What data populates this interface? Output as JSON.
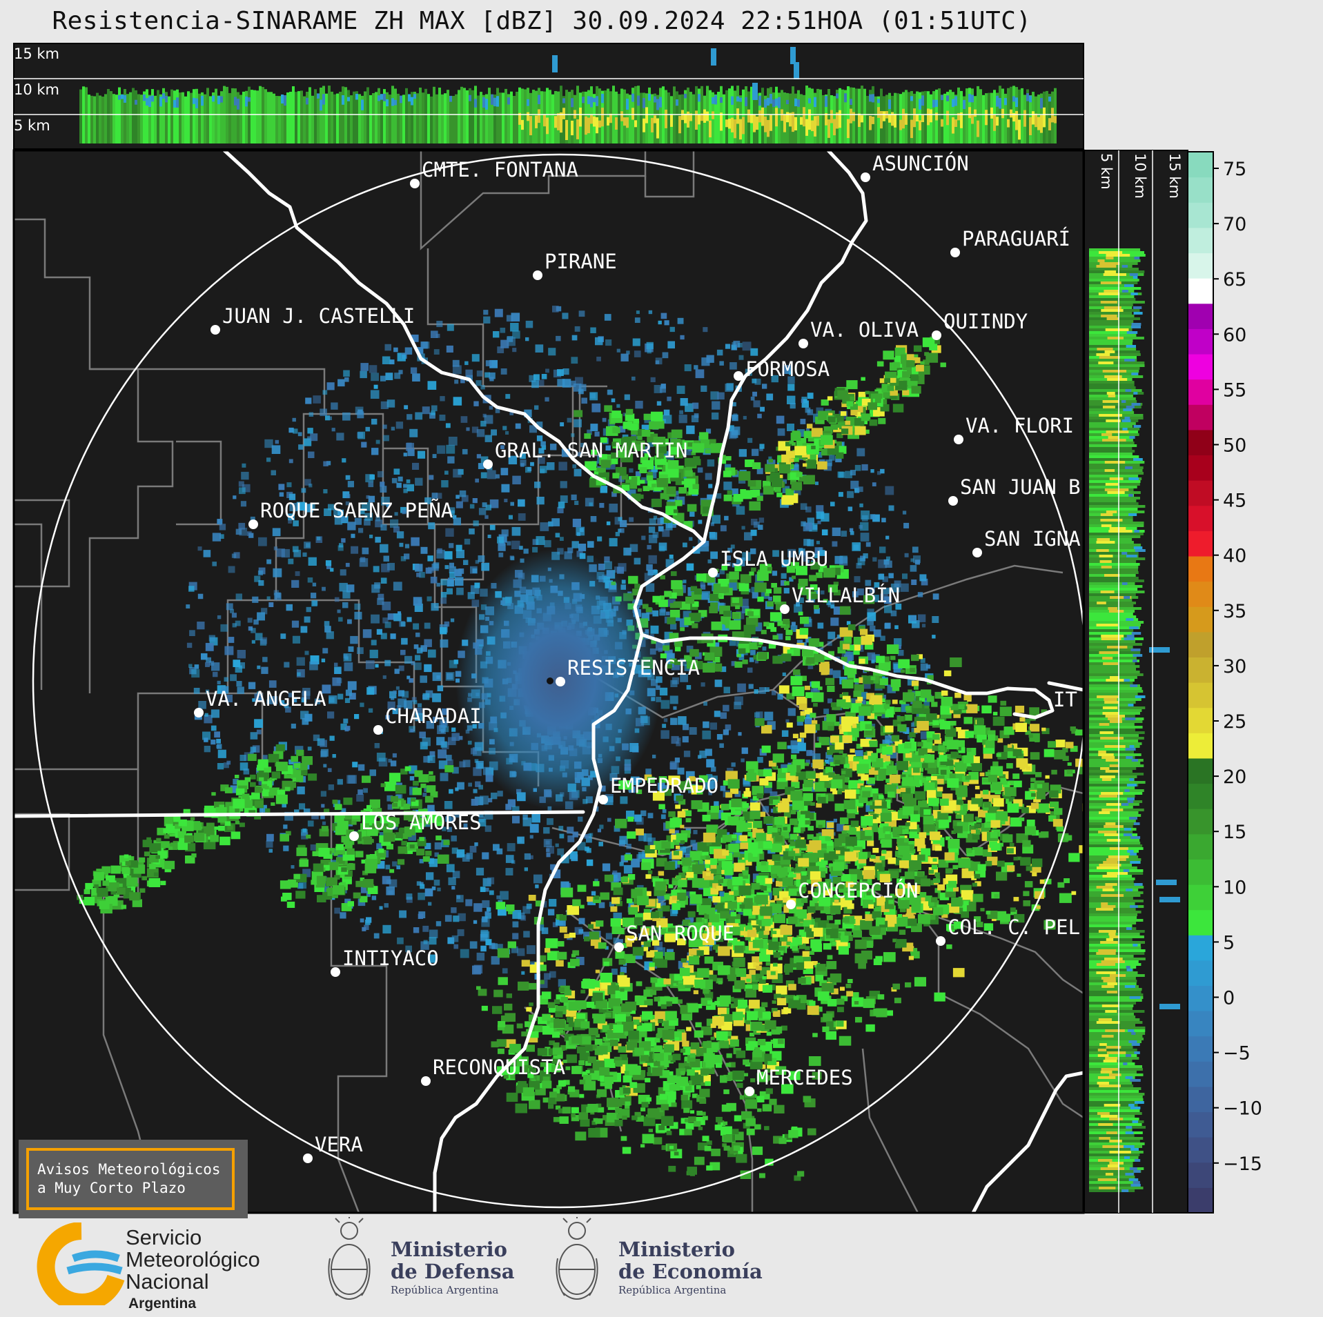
{
  "title": "Resistencia-SINARAME ZH MAX [dBZ] 30.09.2024 22:51HOA (01:51UTC)",
  "cross_section_top": {
    "labels": [
      "15 km",
      "10 km",
      "5 km"
    ]
  },
  "cross_section_right": {
    "labels": [
      "5 km",
      "10 km",
      "15 km"
    ]
  },
  "colorbar": {
    "ticks": [
      "75",
      "70",
      "65",
      "60",
      "55",
      "50",
      "45",
      "40",
      "35",
      "30",
      "25",
      "20",
      "15",
      "10",
      "5",
      "0",
      "−5",
      "−10",
      "−15"
    ],
    "colors": [
      "#3b3d6b",
      "#3d4778",
      "#3f5186",
      "#3f5b93",
      "#3e659f",
      "#3d70ab",
      "#3b7ab6",
      "#3885c0",
      "#3490ca",
      "#2f9bd2",
      "#2aa6da",
      "#3ce63c",
      "#3ed038",
      "#3cbc34",
      "#3aa830",
      "#38942c",
      "#2f8428",
      "#2a7424",
      "#eded38",
      "#e3d834",
      "#d6c432",
      "#cab230",
      "#c0a02c",
      "#d69a1c",
      "#e08a18",
      "#e87814",
      "#ee1c2c",
      "#d8102a",
      "#c00c24",
      "#a8001c",
      "#900018",
      "#c00060",
      "#e000a0",
      "#ee00e0",
      "#c000c8",
      "#a000b0",
      "#ffffff",
      "#d8f5ea",
      "#c0eede",
      "#a8e6d2",
      "#98e0c8",
      "#88dabe"
    ]
  },
  "radar_center": "RESISTENCIA",
  "cities": [
    {
      "name": "CMTE. FONTANA"
    },
    {
      "name": "ASUNCIÓN"
    },
    {
      "name": "PARAGUARÍ"
    },
    {
      "name": "PIRANE"
    },
    {
      "name": "JUAN J. CASTELLI"
    },
    {
      "name": "VA. OLIVA"
    },
    {
      "name": "QUIINDY"
    },
    {
      "name": "FORMOSA"
    },
    {
      "name": "VA. FLORI"
    },
    {
      "name": "GRAL. SAN MARTIN"
    },
    {
      "name": "SAN JUAN B"
    },
    {
      "name": "ROQUE SAENZ PEÑA"
    },
    {
      "name": "SAN IGNA"
    },
    {
      "name": "ISLA UMBU"
    },
    {
      "name": "VILLALBÍN"
    },
    {
      "name": "RESISTENCIA"
    },
    {
      "name": "VA. ANGELA"
    },
    {
      "name": "CHARADAI"
    },
    {
      "name": "IT"
    },
    {
      "name": "EMPEDRADO"
    },
    {
      "name": "LOS AMORES"
    },
    {
      "name": "CONCEPCIÓN"
    },
    {
      "name": "SAN ROQUE"
    },
    {
      "name": "COL. C. PEL"
    },
    {
      "name": "INTIYACO"
    },
    {
      "name": "RECONQUISTA"
    },
    {
      "name": "MERCEDES"
    },
    {
      "name": "VERA"
    }
  ],
  "notice": {
    "line1": "Avisos Meteorológicos",
    "line2": "a Muy Corto Plazo"
  },
  "logos": {
    "smn": {
      "line1": "Servicio",
      "line2": "Meteorológico",
      "line3": "Nacional",
      "line4": "Argentina"
    },
    "defensa": {
      "line1": "Ministerio",
      "line2": "de Defensa",
      "line3": "República Argentina"
    },
    "economia": {
      "line1": "Ministerio",
      "line2": "de Economía",
      "line3": "República Argentina"
    }
  }
}
